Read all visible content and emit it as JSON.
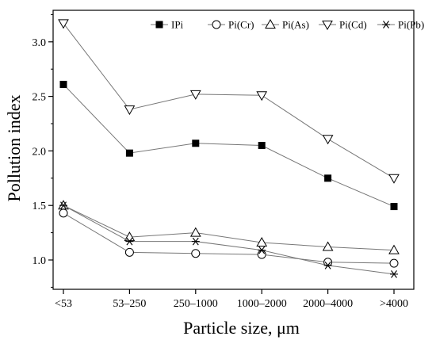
{
  "chart_data": {
    "type": "line",
    "categories": [
      "<53",
      "53–250",
      "250–1000",
      "1000–2000",
      "2000–4000",
      ">4000"
    ],
    "xlabel": "Particle size, μm",
    "ylabel": "Pollution index",
    "ylim": [
      0.65,
      3.35
    ],
    "yticks": [
      "1.0",
      "1.5",
      "2.0",
      "2.5",
      "3.0"
    ],
    "grid": false,
    "legend_position": "top-right",
    "series": [
      {
        "name": "IPi",
        "marker": "filled-square",
        "values": [
          2.61,
          1.98,
          2.07,
          2.05,
          1.75,
          1.49
        ]
      },
      {
        "name": "Pi(Cr)",
        "marker": "open-circle",
        "values": [
          1.43,
          1.07,
          1.06,
          1.05,
          0.98,
          0.97
        ]
      },
      {
        "name": "Pi(As)",
        "marker": "open-triangle-up",
        "values": [
          1.5,
          1.21,
          1.25,
          1.16,
          1.12,
          1.09
        ]
      },
      {
        "name": "Pi(Cd)",
        "marker": "open-triangle-down",
        "values": [
          3.17,
          2.38,
          2.52,
          2.51,
          2.11,
          1.75
        ]
      },
      {
        "name": "Pi(Pb)",
        "marker": "asterisk",
        "values": [
          1.5,
          1.17,
          1.17,
          1.09,
          0.95,
          0.87
        ]
      }
    ],
    "colors": {
      "line": "#777777",
      "marker": "#000000",
      "axis": "#000000"
    }
  }
}
